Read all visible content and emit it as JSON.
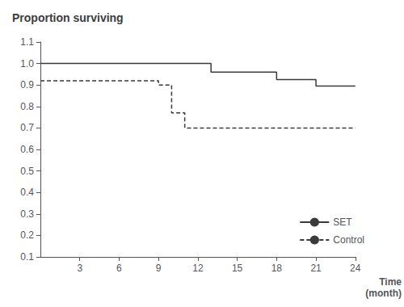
{
  "chart_data": {
    "type": "step",
    "title": "Proportion surviving",
    "xlabel": "Time\n(month)",
    "xlim": [
      0,
      24
    ],
    "ylim": [
      0.1,
      1.1
    ],
    "xticks": [
      3,
      6,
      9,
      12,
      15,
      18,
      21,
      24
    ],
    "yticks": [
      0.1,
      0.2,
      0.3,
      0.4,
      0.5,
      0.6,
      0.7,
      0.8,
      0.9,
      {
        "value": 1.0,
        "label": "1.0"
      },
      1.1
    ],
    "grid": false,
    "legend": "lower right",
    "series": [
      {
        "name": "SET",
        "color": "#3a3a3a",
        "line_style": "solid",
        "x": [
          0,
          2,
          2,
          13,
          13,
          18,
          18,
          21,
          21,
          24
        ],
        "values": [
          1.0,
          1.0,
          1.0,
          1.0,
          0.96,
          0.96,
          0.925,
          0.925,
          0.895,
          0.895
        ]
      },
      {
        "name": "Control",
        "color": "#3a3a3a",
        "line_style": "dashed",
        "x": [
          0,
          2,
          2,
          9,
          9,
          10,
          10,
          11,
          11,
          24
        ],
        "values": [
          0.92,
          0.92,
          0.92,
          0.92,
          0.9,
          0.9,
          0.77,
          0.77,
          0.7,
          0.7
        ]
      }
    ]
  }
}
